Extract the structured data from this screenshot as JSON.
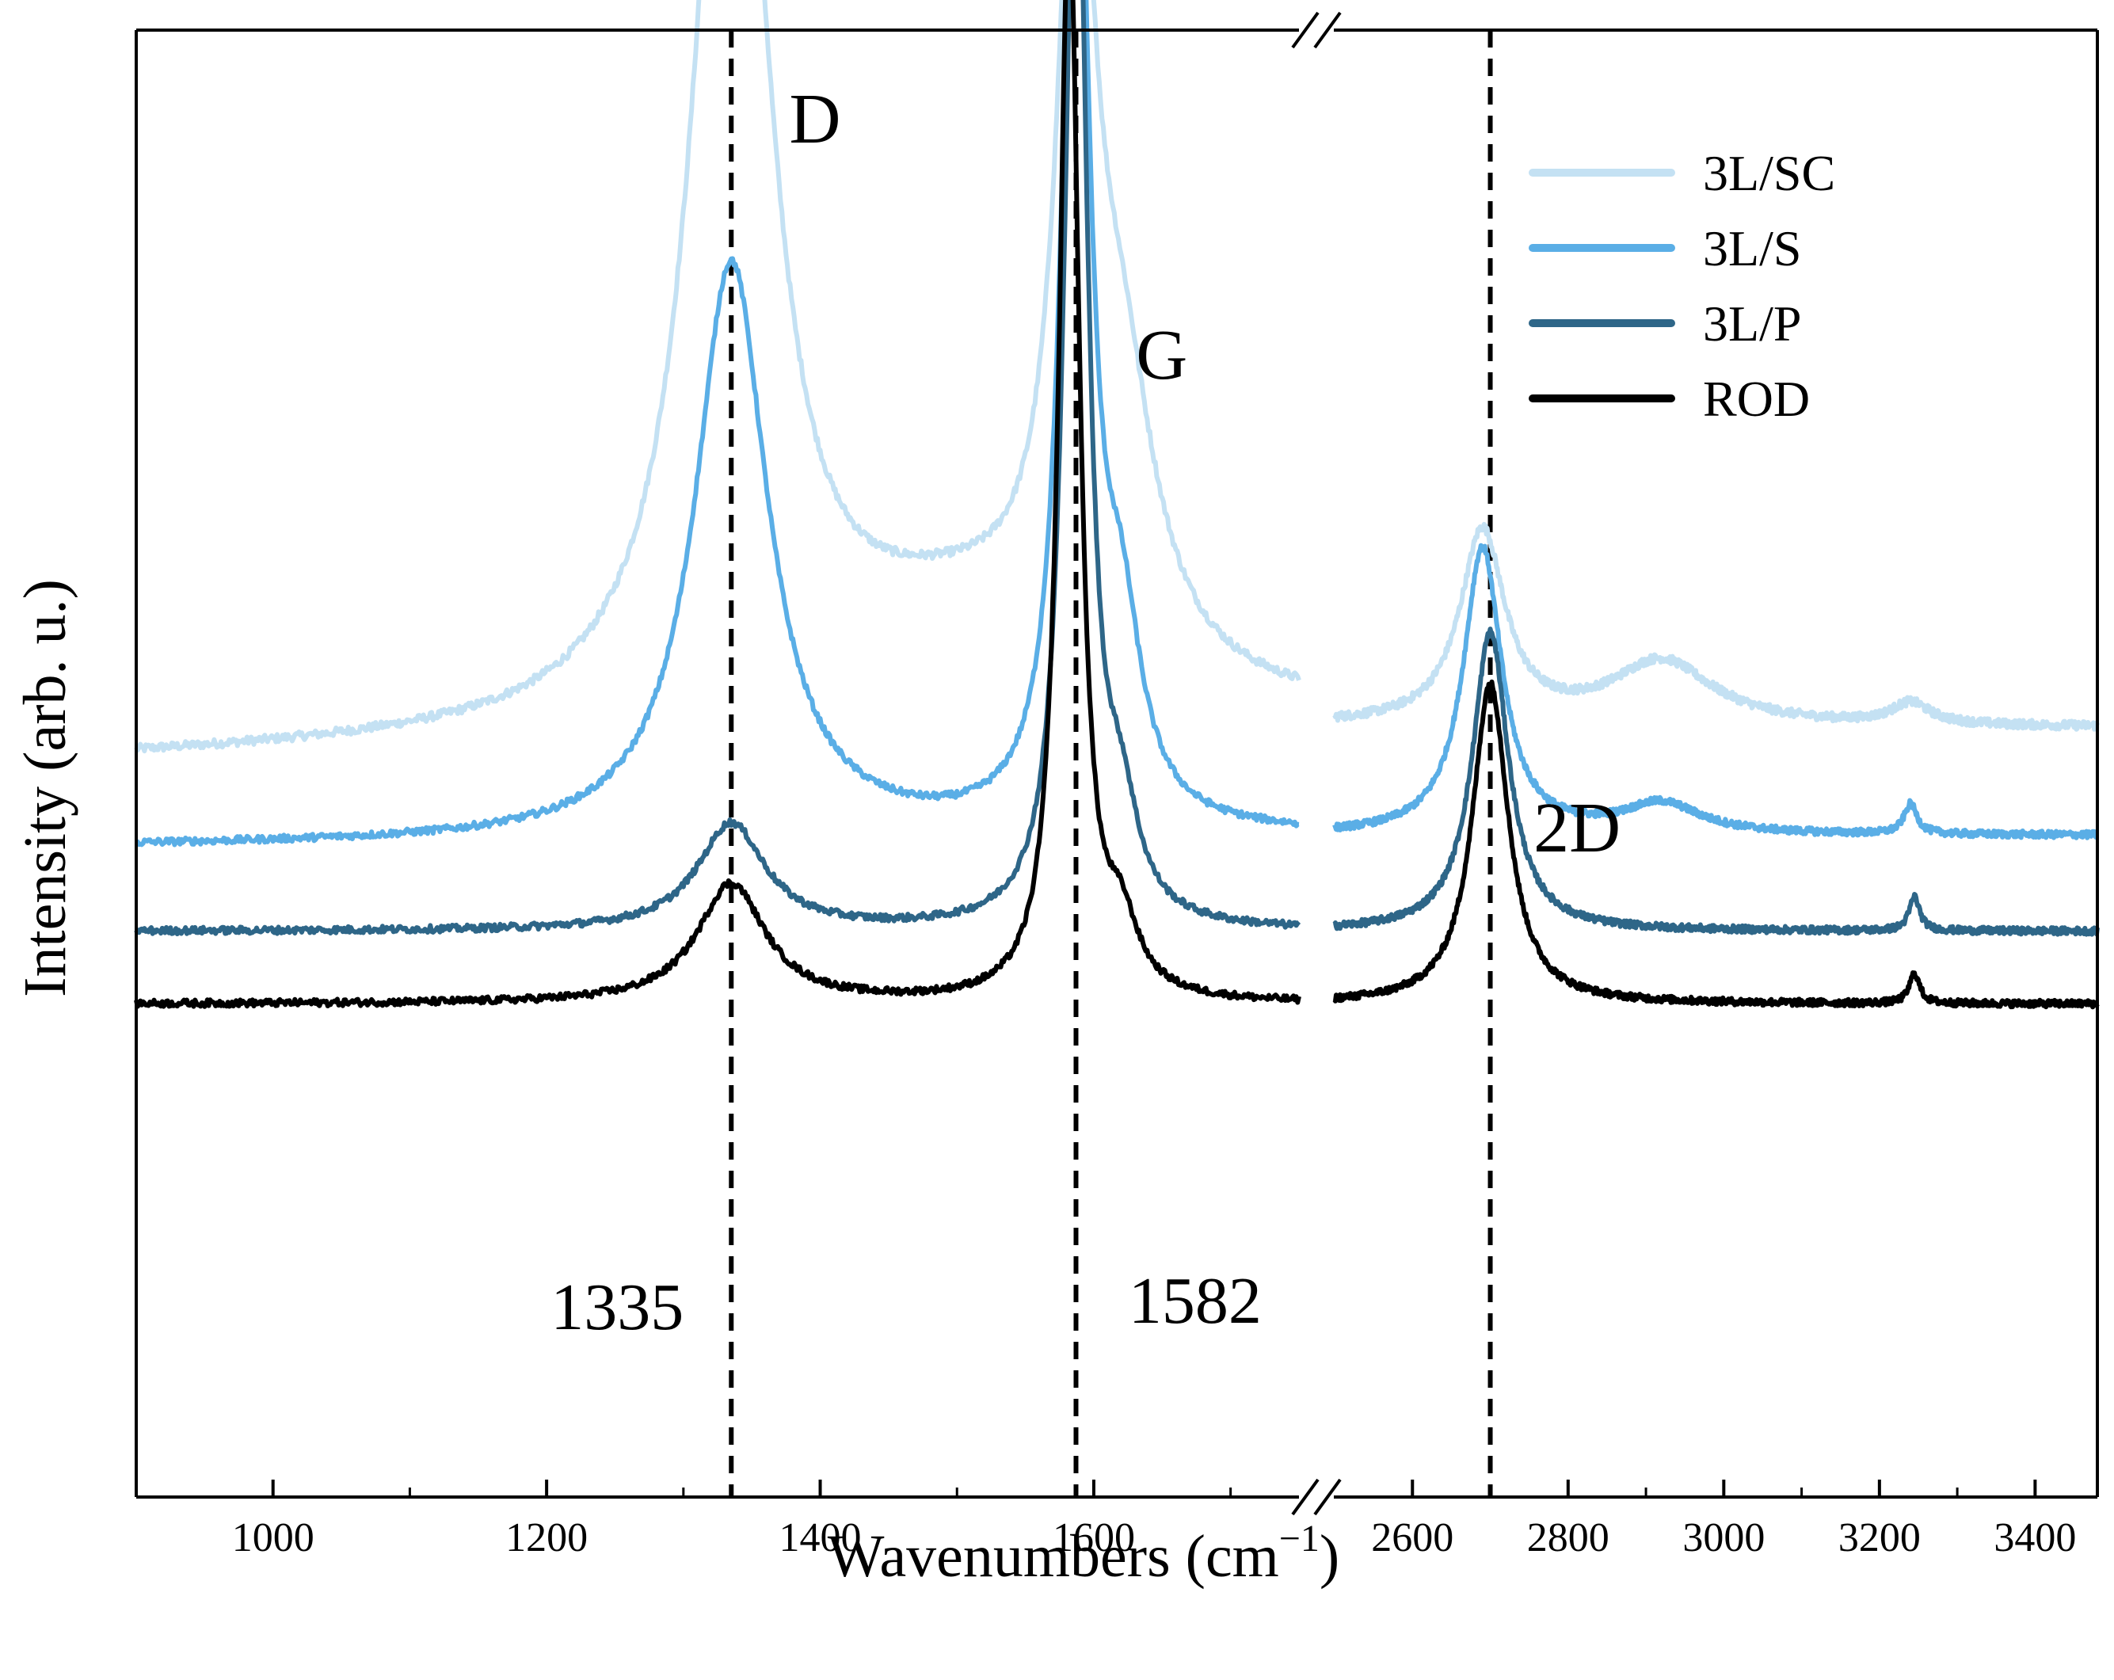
{
  "chart_data": {
    "type": "line",
    "title": "",
    "xlabel": "Wavenumbers (cm",
    "xlabel_sup": "−1",
    "xlabel_close": ")",
    "ylabel": "Intensity (arb. u.)",
    "x_axis_break": true,
    "xlim_left": [
      900,
      1750
    ],
    "xlim_right": [
      2500,
      3480
    ],
    "xticks_left": [
      1000,
      1200,
      1400,
      1600
    ],
    "xticks_right": [
      2600,
      2800,
      3000,
      3200,
      3400
    ],
    "y_ticks_shown": false,
    "reference_lines": [
      {
        "x": 1335,
        "style": "dashed"
      },
      {
        "x": 1587,
        "style": "dashed"
      },
      {
        "x": 2700,
        "style": "dashed"
      }
    ],
    "annotations": [
      {
        "text": "D",
        "x": 1360,
        "near": "D band peak"
      },
      {
        "text": "G",
        "x": 1610,
        "near": "G band peak"
      },
      {
        "text": "2D",
        "x": 2720,
        "near": "2D band peak"
      },
      {
        "text": "1335",
        "x": 1335,
        "near": "D peak of ROD"
      },
      {
        "text": "1582",
        "x": 1582,
        "near": "G peak of ROD"
      }
    ],
    "legend_placement": "top-right",
    "series": [
      {
        "name": "3L/SC",
        "color": "#c4e1f3",
        "baseline": 0.5,
        "slope": 0.25,
        "noise": 0.01,
        "peaks": [
          {
            "center": 1335,
            "width": 32,
            "height": 2.55
          },
          {
            "center": 1587,
            "width": 16,
            "height": 1.85
          },
          {
            "center": 1620,
            "width": 30,
            "height": 0.6
          },
          {
            "center": 1500,
            "width": 130,
            "height": 0.25
          },
          {
            "center": 2690,
            "width": 35,
            "height": 0.45
          },
          {
            "center": 2920,
            "width": 80,
            "height": 0.15
          },
          {
            "center": 3240,
            "width": 30,
            "height": 0.05
          }
        ]
      },
      {
        "name": "3L/S",
        "color": "#5aaee6",
        "baseline": 0.3,
        "slope": 0.08,
        "noise": 0.008,
        "peaks": [
          {
            "center": 1335,
            "width": 32,
            "height": 1.35
          },
          {
            "center": 1587,
            "width": 12,
            "height": 2.5
          },
          {
            "center": 1620,
            "width": 18,
            "height": 0.4
          },
          {
            "center": 2690,
            "width": 30,
            "height": 0.67
          },
          {
            "center": 2920,
            "width": 60,
            "height": 0.07
          },
          {
            "center": 3240,
            "width": 10,
            "height": 0.07
          }
        ]
      },
      {
        "name": "3L/P",
        "color": "#2e6688",
        "baseline": 0.1,
        "slope": 0.0,
        "noise": 0.008,
        "peaks": [
          {
            "center": 1335,
            "width": 30,
            "height": 0.25
          },
          {
            "center": 1587,
            "width": 10,
            "height": 2.7
          },
          {
            "center": 1620,
            "width": 15,
            "height": 0.22
          },
          {
            "center": 2700,
            "width": 28,
            "height": 0.7
          },
          {
            "center": 3245,
            "width": 8,
            "height": 0.08
          }
        ]
      },
      {
        "name": "ROD",
        "color": "#000000",
        "baseline": -0.07,
        "slope": 0.0,
        "noise": 0.008,
        "peaks": [
          {
            "center": 1335,
            "width": 30,
            "height": 0.28
          },
          {
            "center": 1582,
            "width": 9,
            "height": 2.55
          },
          {
            "center": 1620,
            "width": 15,
            "height": 0.15
          },
          {
            "center": 2700,
            "width": 28,
            "height": 0.75
          },
          {
            "center": 3245,
            "width": 8,
            "height": 0.07
          }
        ]
      }
    ]
  },
  "colors": {
    "axis": "#000000",
    "background": "#ffffff"
  }
}
